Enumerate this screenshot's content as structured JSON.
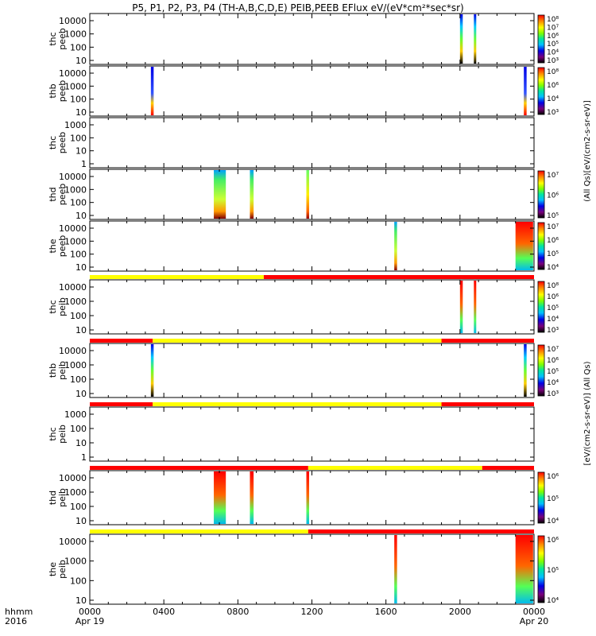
{
  "title": "P5, P1, P2, P3, P4 (TH-A,B,C,D,E) PEIB,PEEB EFlux eV/(eV*cm²*sec*sr)",
  "xaxis": {
    "ticks": [
      "0000",
      "0400",
      "0800",
      "1200",
      "1600",
      "2000",
      "0000"
    ],
    "date_labels": [
      "Apr 19",
      "Apr 20"
    ],
    "corner_labels": [
      "hhmm",
      "2016"
    ]
  },
  "colorbar_labels": {
    "peeb": "(All Qs)[eV/(cm2-s-sr-eV)]",
    "peib": "[eV/(cm2-s-sr-eV)] (All Qs)"
  },
  "colors": {
    "axis": "#000000",
    "flag_yellow": "#ffff00",
    "flag_red": "#ff0000",
    "colormap": [
      "#000000",
      "#7a007a",
      "#0000e6",
      "#00bfff",
      "#00e6a0",
      "#7fff00",
      "#ffff00",
      "#ff8c00",
      "#ff0000"
    ]
  },
  "chart_data": {
    "type": "heatmap",
    "time_range_hours": [
      0,
      24
    ],
    "panels": [
      {
        "ylabel": [
          "thc",
          "peeb"
        ],
        "yticks": [
          "10000",
          "1000",
          "100",
          "10"
        ],
        "colorbar_ticks": [
          "10⁸",
          "10⁷",
          "10⁶",
          "10⁵",
          "10⁴",
          "10³"
        ],
        "bursts": [
          {
            "t": [
              20.0,
              20.15
            ],
            "kind": "mixed"
          },
          {
            "t": [
              20.75,
              20.85
            ],
            "kind": "mixed"
          }
        ]
      },
      {
        "ylabel": [
          "thb",
          "peeb"
        ],
        "yticks": [
          "10000",
          "1000",
          "100",
          "10"
        ],
        "colorbar_ticks": [
          "10⁸",
          "10⁶",
          "10⁴",
          "10³"
        ],
        "bursts": [
          {
            "t": [
              3.3,
              3.45
            ],
            "kind": "blue"
          },
          {
            "t": [
              23.45,
              23.6
            ],
            "kind": "blue"
          }
        ]
      },
      {
        "ylabel": [
          "thc",
          "peeb"
        ],
        "yticks": [
          "1000",
          "100",
          "10",
          "1"
        ],
        "colorbar_ticks": [],
        "bursts": []
      },
      {
        "ylabel": [
          "thd",
          "peeb"
        ],
        "yticks": [
          "10000",
          "1000",
          "100",
          "10"
        ],
        "colorbar_ticks": [
          "10⁷",
          "10⁶",
          "10⁵"
        ],
        "bursts": [
          {
            "t": [
              6.7,
              7.35
            ],
            "kind": "green"
          },
          {
            "t": [
              8.65,
              8.85
            ],
            "kind": "green"
          },
          {
            "t": [
              11.7,
              11.85
            ],
            "kind": "yellow"
          }
        ]
      },
      {
        "ylabel": [
          "the",
          "peeb"
        ],
        "yticks": [
          "10000",
          "1000",
          "100",
          "10"
        ],
        "colorbar_ticks": [
          "10⁷",
          "10⁶",
          "10⁵",
          "10⁴"
        ],
        "bursts": [
          {
            "t": [
              16.45,
              16.6
            ],
            "kind": "green"
          },
          {
            "t": [
              23.0,
              23.95
            ],
            "kind": "red"
          }
        ],
        "flag_after": [
          {
            "t": [
              0,
              9.4
            ],
            "color": "yellow"
          },
          {
            "t": [
              9.4,
              24
            ],
            "color": "red"
          }
        ]
      },
      {
        "ylabel": [
          "thc",
          "peib"
        ],
        "yticks": [
          "10000",
          "1000",
          "100",
          "10"
        ],
        "colorbar_ticks": [
          "10⁸",
          "10⁶",
          "10⁵",
          "10⁴",
          "10³"
        ],
        "bursts": [
          {
            "t": [
              20.0,
              20.15
            ],
            "kind": "red"
          },
          {
            "t": [
              20.75,
              20.85
            ],
            "kind": "red"
          }
        ],
        "flag_after": [
          {
            "t": [
              0,
              3.4
            ],
            "color": "red"
          },
          {
            "t": [
              3.4,
              19.0
            ],
            "color": "yellow"
          },
          {
            "t": [
              19.0,
              24
            ],
            "color": "red"
          }
        ]
      },
      {
        "ylabel": [
          "thb",
          "peib"
        ],
        "yticks": [
          "10000",
          "1000",
          "100",
          "10"
        ],
        "colorbar_ticks": [
          "10⁷",
          "10⁶",
          "10⁵",
          "10⁴",
          "10³"
        ],
        "bursts": [
          {
            "t": [
              3.3,
              3.45
            ],
            "kind": "mixed"
          },
          {
            "t": [
              23.45,
              23.6
            ],
            "kind": "mixed"
          }
        ],
        "flag_after": [
          {
            "t": [
              0,
              3.4
            ],
            "color": "red"
          },
          {
            "t": [
              3.4,
              19.0
            ],
            "color": "yellow"
          },
          {
            "t": [
              19.0,
              24
            ],
            "color": "red"
          }
        ]
      },
      {
        "ylabel": [
          "thc",
          "peib"
        ],
        "yticks": [
          "1000",
          "100",
          "10",
          "1"
        ],
        "colorbar_ticks": [],
        "bursts": [],
        "flag_after": [
          {
            "t": [
              0,
              11.8
            ],
            "color": "red"
          },
          {
            "t": [
              11.8,
              21.2
            ],
            "color": "yellow"
          },
          {
            "t": [
              21.2,
              24
            ],
            "color": "red"
          }
        ]
      },
      {
        "ylabel": [
          "thd",
          "peib"
        ],
        "yticks": [
          "10000",
          "1000",
          "100",
          "10"
        ],
        "colorbar_ticks": [
          "10⁶",
          "10⁵",
          "10⁴"
        ],
        "bursts": [
          {
            "t": [
              6.7,
              7.35
            ],
            "kind": "red"
          },
          {
            "t": [
              8.65,
              8.85
            ],
            "kind": "red"
          },
          {
            "t": [
              11.7,
              11.85
            ],
            "kind": "red"
          }
        ],
        "flag_after": [
          {
            "t": [
              0,
              11.8
            ],
            "color": "yellow"
          },
          {
            "t": [
              11.8,
              24
            ],
            "color": "red"
          }
        ]
      },
      {
        "ylabel": [
          "the",
          "peib"
        ],
        "yticks": [
          "10000",
          "1000",
          "100",
          "10"
        ],
        "colorbar_ticks": [
          "10⁶",
          "10⁵",
          "10⁴"
        ],
        "bursts": [
          {
            "t": [
              16.45,
              16.6
            ],
            "kind": "red"
          },
          {
            "t": [
              23.0,
              23.95
            ],
            "kind": "red"
          }
        ]
      }
    ]
  }
}
